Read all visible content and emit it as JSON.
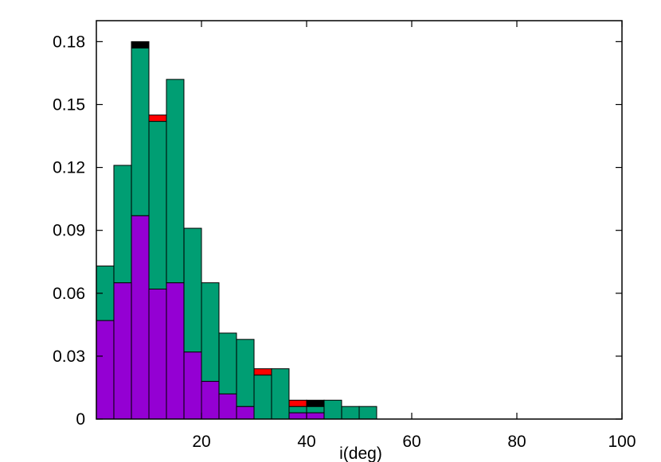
{
  "chart_data": {
    "type": "bar",
    "stacked": true,
    "xlabel": "i(deg)",
    "ylabel": "",
    "xlim": [
      0,
      100
    ],
    "ylim": [
      0,
      0.19
    ],
    "bin_width": 3.33,
    "x_ticks": [
      20,
      40,
      60,
      80,
      100
    ],
    "y_ticks": [
      0,
      0.03,
      0.06,
      0.09,
      0.12,
      0.15,
      0.18
    ],
    "y_tick_labels": [
      "0",
      "0.03",
      "0.06",
      "0.09",
      "0.12",
      "0.15",
      "0.18"
    ],
    "x_tick_labels": [
      "20",
      "40",
      "60",
      "80",
      "100"
    ],
    "legend": "none",
    "grid": false,
    "bins": [
      {
        "x0": 0.0,
        "purple": 0.047,
        "green": 0.026,
        "red": 0,
        "black": 0
      },
      {
        "x0": 3.33,
        "purple": 0.065,
        "green": 0.056,
        "red": 0,
        "black": 0
      },
      {
        "x0": 6.67,
        "purple": 0.097,
        "green": 0.08,
        "red": 0,
        "black": 0.003
      },
      {
        "x0": 10.0,
        "purple": 0.062,
        "green": 0.08,
        "red": 0.003,
        "black": 0
      },
      {
        "x0": 13.33,
        "purple": 0.065,
        "green": 0.097,
        "red": 0,
        "black": 0
      },
      {
        "x0": 16.67,
        "purple": 0.032,
        "green": 0.059,
        "red": 0,
        "black": 0
      },
      {
        "x0": 20.0,
        "purple": 0.018,
        "green": 0.047,
        "red": 0,
        "black": 0
      },
      {
        "x0": 23.33,
        "purple": 0.012,
        "green": 0.029,
        "red": 0,
        "black": 0
      },
      {
        "x0": 26.67,
        "purple": 0.006,
        "green": 0.032,
        "red": 0,
        "black": 0
      },
      {
        "x0": 30.0,
        "purple": 0,
        "green": 0.021,
        "red": 0.003,
        "black": 0
      },
      {
        "x0": 33.33,
        "purple": 0,
        "green": 0.024,
        "red": 0,
        "black": 0
      },
      {
        "x0": 36.67,
        "purple": 0.003,
        "green": 0.003,
        "red": 0.003,
        "black": 0
      },
      {
        "x0": 40.0,
        "purple": 0.003,
        "green": 0.003,
        "red": 0,
        "black": 0.003
      },
      {
        "x0": 43.33,
        "purple": 0,
        "green": 0.009,
        "red": 0,
        "black": 0
      },
      {
        "x0": 46.67,
        "purple": 0,
        "green": 0.006,
        "red": 0,
        "black": 0
      },
      {
        "x0": 50.0,
        "purple": 0,
        "green": 0.006,
        "red": 0,
        "black": 0
      }
    ],
    "colors": {
      "purple": "#9400d3",
      "green": "#009e73",
      "red": "#ff0000",
      "black": "#000000"
    }
  }
}
